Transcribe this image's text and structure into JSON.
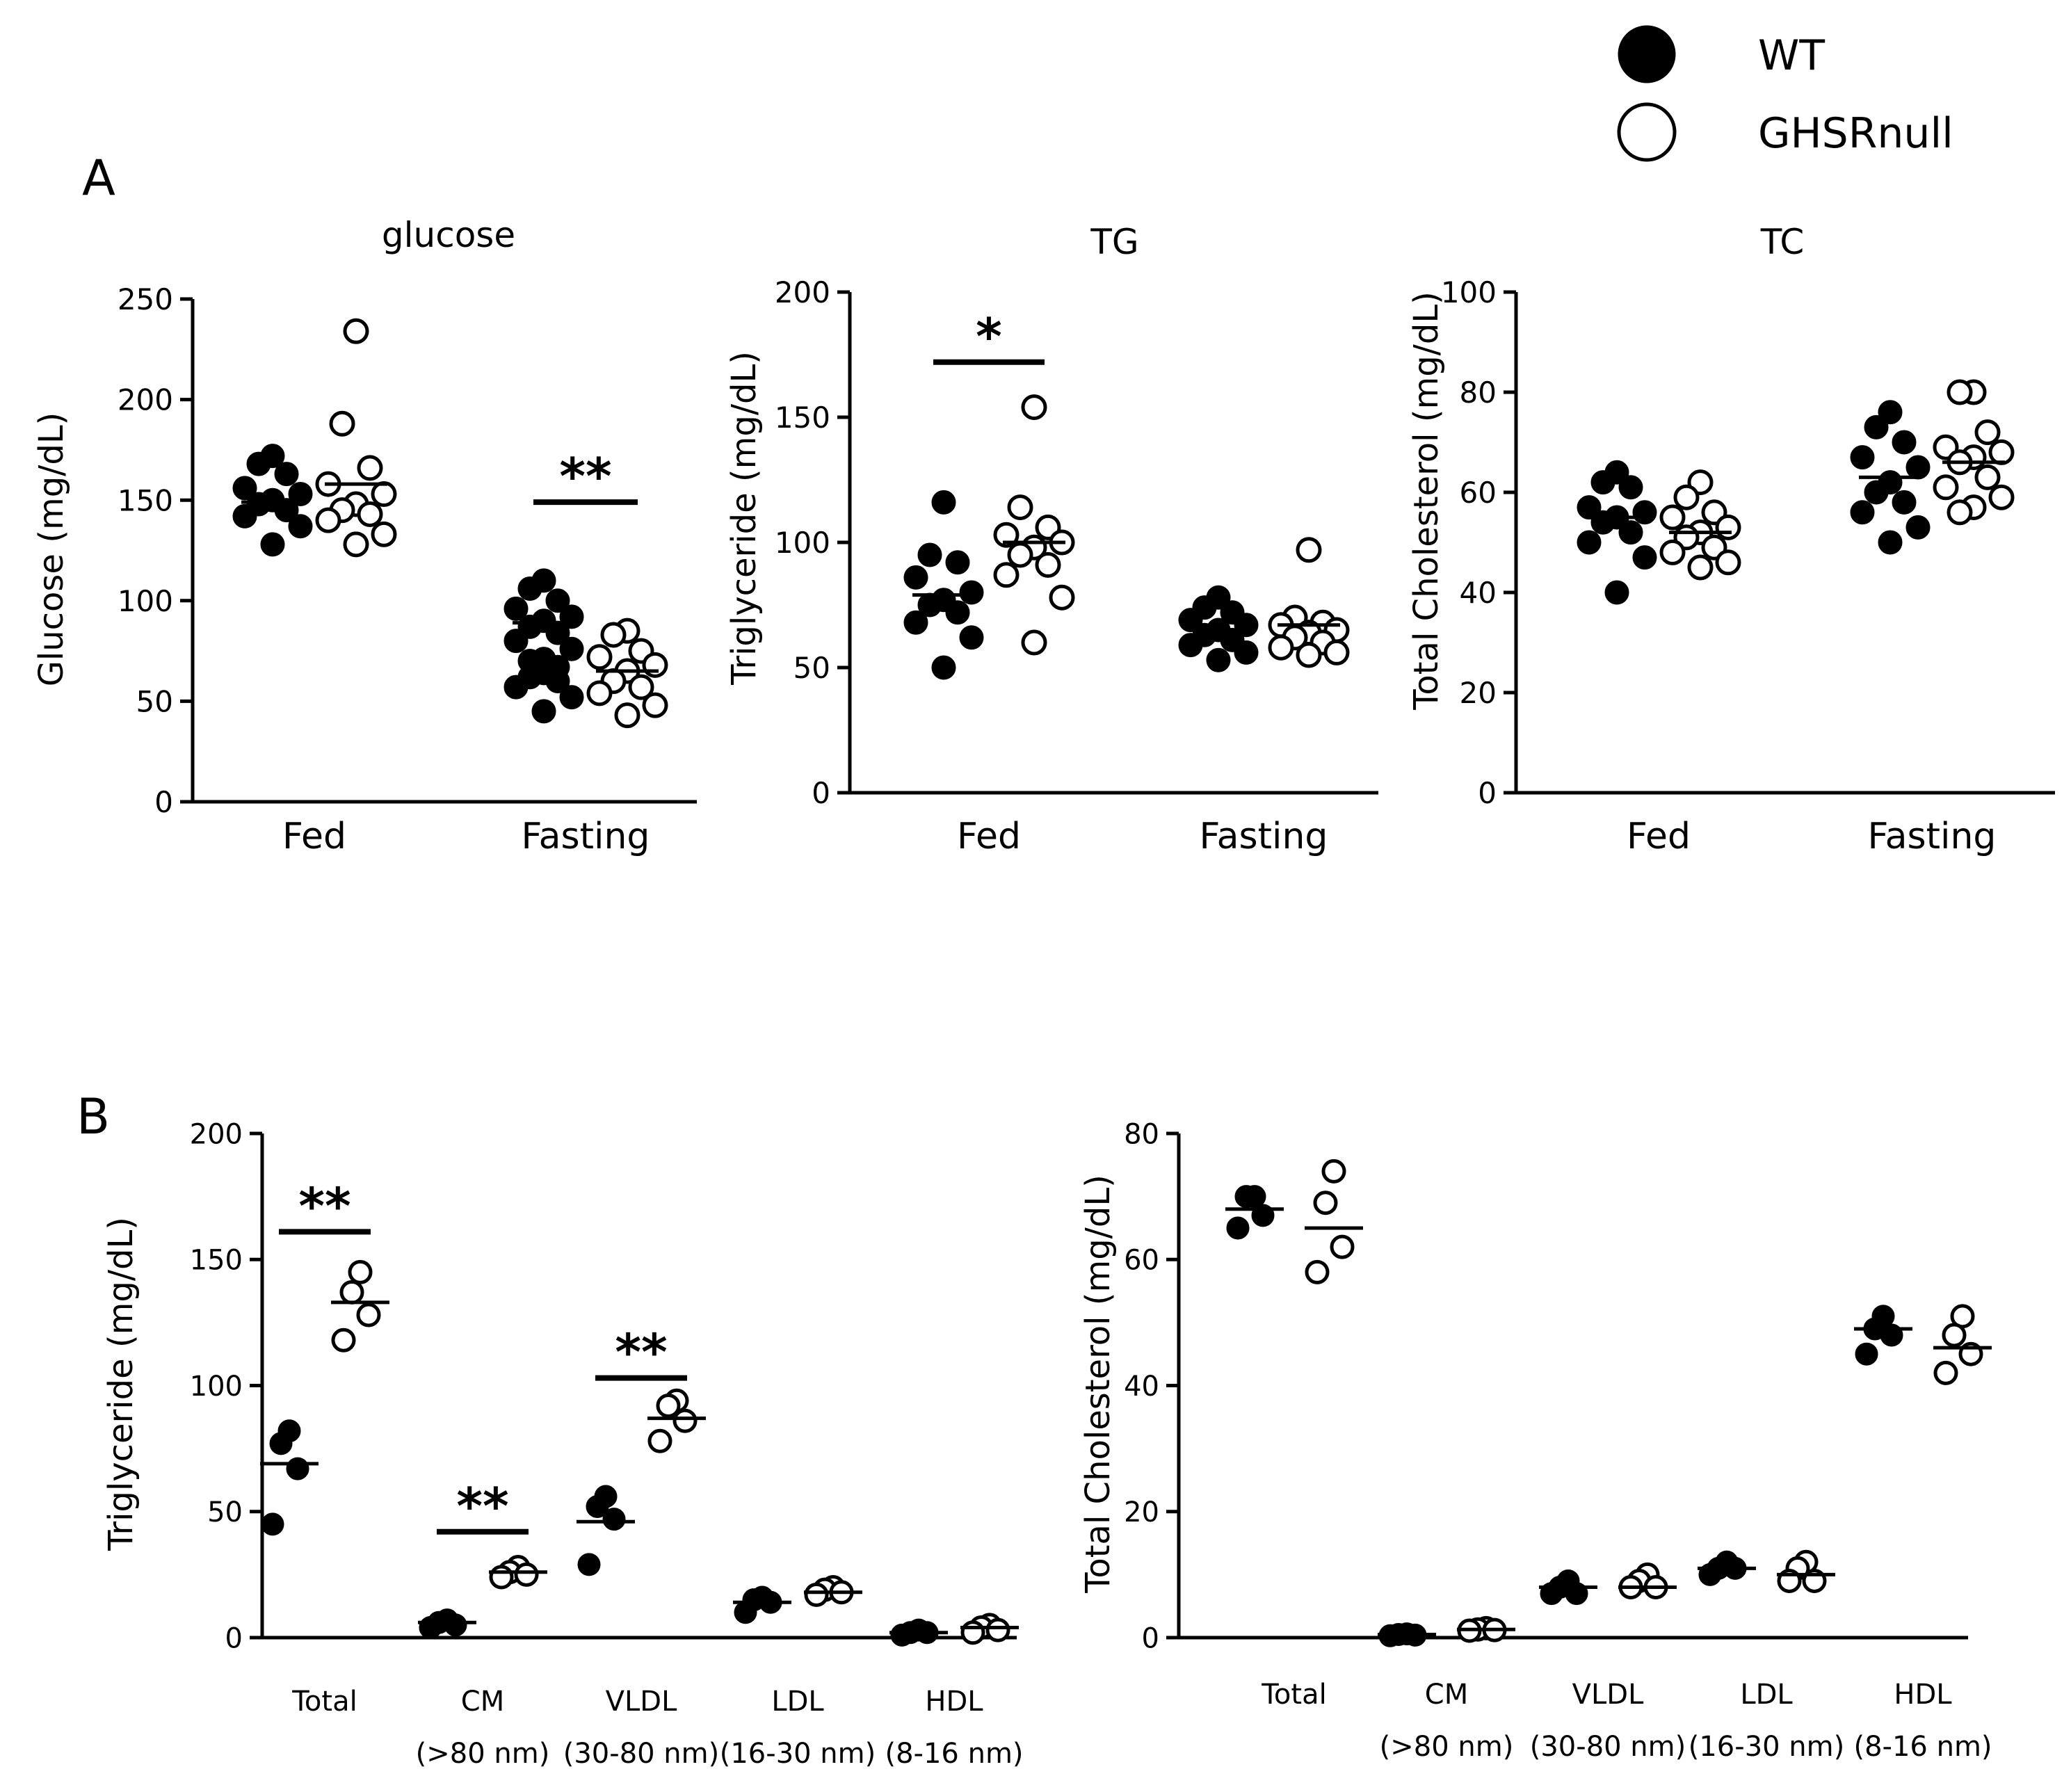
{
  "legend": {
    "items": [
      {
        "label": "WT",
        "marker": "filled-circle"
      },
      {
        "label": "GHSRnull",
        "marker": "open-circle"
      }
    ]
  },
  "panels": {
    "A": "A",
    "B": "B"
  },
  "chart_data": [
    {
      "type": "scatter",
      "panel": "A",
      "title": "glucose",
      "ylabel": "Glucose (mg/dL)",
      "ylim": [
        0,
        250
      ],
      "yticks": [
        0,
        50,
        100,
        150,
        200,
        250
      ],
      "categories": [
        "Fed",
        "Fasting"
      ],
      "series": [
        {
          "name": "WT",
          "points": [
            [
              172,
              168,
              163,
              156,
              153,
              150,
              148,
              145,
              142,
              137,
              128
            ],
            [
              110,
              106,
              100,
              96,
              92,
              90,
              87,
              84,
              80,
              76,
              71,
              70,
              67,
              64,
              62,
              60,
              57,
              52,
              45
            ]
          ],
          "mean": [
            149,
            89
          ]
        },
        {
          "name": "GHSRnull",
          "points": [
            [
              234,
              188,
              166,
              158,
              153,
              148,
              145,
              143,
              140,
              133,
              128
            ],
            [
              85,
              83,
              75,
              72,
              68,
              65,
              60,
              57,
              54,
              48,
              43
            ]
          ],
          "mean": [
            158,
            65
          ]
        }
      ],
      "significance": [
        {
          "category": "Fasting",
          "label": "**",
          "y": 149
        }
      ]
    },
    {
      "type": "scatter",
      "panel": "A",
      "title": "TG",
      "ylabel": "Triglyceride (mg/dL)",
      "ylim": [
        0,
        200
      ],
      "yticks": [
        0,
        50,
        100,
        150,
        200
      ],
      "categories": [
        "Fed",
        "Fasting"
      ],
      "series": [
        {
          "name": "WT",
          "points": [
            [
              116,
              95,
              92,
              86,
              80,
              77,
              75,
              72,
              68,
              62,
              50
            ],
            [
              78,
              74,
              72,
              69,
              67,
              65,
              63,
              61,
              59,
              56,
              53
            ]
          ],
          "mean": [
            79,
            65
          ]
        },
        {
          "name": "GHSRnull",
          "points": [
            [
              154,
              114,
              106,
              103,
              100,
              98,
              95,
              91,
              87,
              78,
              60
            ],
            [
              97,
              70,
              68,
              67,
              65,
              64,
              62,
              60,
              58,
              56,
              55
            ]
          ],
          "mean": [
            100,
            67
          ]
        }
      ],
      "significance": [
        {
          "category": "Fed",
          "label": "*",
          "y": 172
        }
      ]
    },
    {
      "type": "scatter",
      "panel": "A",
      "title": "TC",
      "ylabel": "Total Cholesterol (mg/dL)",
      "ylim": [
        0,
        100
      ],
      "yticks": [
        0,
        20,
        40,
        60,
        80,
        100
      ],
      "categories": [
        "Fed",
        "Fasting"
      ],
      "series": [
        {
          "name": "WT",
          "points": [
            [
              64,
              62,
              61,
              57,
              56,
              55,
              54,
              52,
              50,
              47,
              40
            ],
            [
              76,
              73,
              70,
              67,
              65,
              62,
              60,
              58,
              56,
              53,
              50
            ]
          ],
          "mean": [
            55,
            63
          ]
        },
        {
          "name": "GHSRnull",
          "points": [
            [
              62,
              59,
              56,
              55,
              53,
              52,
              51,
              49,
              48,
              46,
              45
            ],
            [
              80,
              80,
              72,
              69,
              68,
              67,
              66,
              63,
              61,
              59,
              57,
              56
            ]
          ],
          "mean": [
            52,
            66
          ]
        }
      ],
      "significance": []
    },
    {
      "type": "scatter",
      "panel": "B",
      "title": "",
      "ylabel": "Triglyceride (mg/dL)",
      "ylim": [
        0,
        200
      ],
      "yticks": [
        0,
        50,
        100,
        150,
        200
      ],
      "categories": [
        "Total",
        "CM",
        "VLDL",
        "LDL",
        "HDL"
      ],
      "category_sublabels": [
        "",
        "(>80 nm)",
        "(30-80 nm)",
        "(16-30 nm)",
        "(8-16 nm)"
      ],
      "series": [
        {
          "name": "WT",
          "points": [
            [
              82,
              77,
              67,
              45
            ],
            [
              7,
              6,
              5,
              4
            ],
            [
              56,
              52,
              47,
              29
            ],
            [
              16,
              15,
              14,
              10
            ],
            [
              3,
              2,
              2,
              1
            ]
          ],
          "mean": [
            69,
            6,
            46,
            14,
            2
          ]
        },
        {
          "name": "GHSRnull",
          "points": [
            [
              145,
              137,
              128,
              118
            ],
            [
              28,
              26,
              25,
              24
            ],
            [
              94,
              92,
              86,
              78
            ],
            [
              20,
              19,
              18,
              17
            ],
            [
              5,
              4,
              3,
              2
            ]
          ],
          "mean": [
            133,
            26,
            87,
            18,
            4
          ]
        }
      ],
      "significance": [
        {
          "category": "Total",
          "label": "**",
          "y": 161
        },
        {
          "category": "CM",
          "label": "**",
          "y": 42
        },
        {
          "category": "VLDL",
          "label": "**",
          "y": 103
        }
      ]
    },
    {
      "type": "scatter",
      "panel": "B",
      "title": "",
      "ylabel": "Total Cholesterol (mg/dL)",
      "ylim": [
        0,
        80
      ],
      "yticks": [
        0,
        20,
        40,
        60,
        80
      ],
      "categories": [
        "Total",
        "CM",
        "VLDL",
        "LDL",
        "HDL"
      ],
      "category_sublabels": [
        "",
        "(>80 nm)",
        "(30-80 nm)",
        "(16-30 nm)",
        "(8-16 nm)"
      ],
      "series": [
        {
          "name": "WT",
          "points": [
            [
              70,
              70,
              67,
              65
            ],
            [
              0.6,
              0.5,
              0.4,
              0.3
            ],
            [
              9,
              8,
              7,
              7
            ],
            [
              12,
              11,
              11,
              10
            ],
            [
              51,
              49,
              48,
              45
            ]
          ],
          "mean": [
            68,
            0.5,
            8,
            11,
            49
          ]
        },
        {
          "name": "GHSRnull",
          "points": [
            [
              74,
              69,
              62,
              58
            ],
            [
              1.5,
              1.3,
              1.2,
              1.1
            ],
            [
              10,
              9,
              8,
              8
            ],
            [
              12,
              11,
              9,
              9
            ],
            [
              51,
              48,
              45,
              42
            ]
          ],
          "mean": [
            65,
            1.3,
            8,
            10,
            46
          ]
        }
      ],
      "significance": []
    }
  ]
}
